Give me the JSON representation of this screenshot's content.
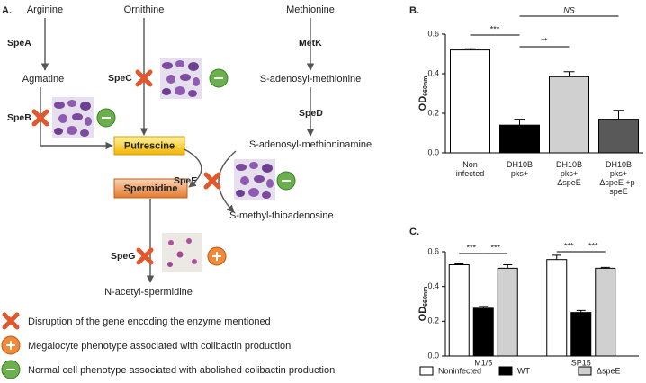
{
  "diagram": {
    "label": "A.",
    "nodes": [
      "Arginine",
      "Ornithine",
      "Methionine",
      "Agmatine",
      "S-adenosyl-methionine",
      "Putrescine",
      "S-adenosyl-methioninamine",
      "Spermidine",
      "S-methyl-thioadenosine",
      "N-acetyl-spermidine"
    ],
    "enzymes": [
      "SpeA",
      "MetK",
      "SpeC",
      "SpeB",
      "SpeD",
      "SpeE",
      "SpeG"
    ],
    "legend": [
      "Disruption of the gene encoding the enzyme mentioned",
      "Megalocyte phenotype associated with colibactin production",
      "Normal cell phenotype associated with abolished colibactin production"
    ]
  },
  "chart_data": [
    {
      "type": "bar",
      "label": "B.",
      "ylabel": [
        "OD",
        "660nm"
      ],
      "categories": [
        "Non infected",
        "DH10B pks+",
        "DH10B pks+ ΔspeE",
        "DH10B pks+ ΔspeE +p-speE"
      ],
      "values": [
        0.52,
        0.14,
        0.385,
        0.17
      ],
      "errors": [
        0.006,
        0.03,
        0.025,
        0.045
      ],
      "colors": [
        "#ffffff",
        "#000000",
        "#d0d0d0",
        "#595959"
      ],
      "ylim": [
        0,
        0.6
      ],
      "yticks": [
        {
          "value": 0,
          "label": "0.0"
        },
        {
          "value": 0.2,
          "label": "0.2"
        },
        {
          "value": 0.4,
          "label": "0.4"
        },
        {
          "value": 0.6,
          "label": "0.6"
        }
      ],
      "annotations": [
        {
          "text": "***",
          "pair": [
            "Non infected",
            "DH10B pks+"
          ]
        },
        {
          "text": "**",
          "pair": [
            "DH10B pks+",
            "DH10B pks+ ΔspeE"
          ]
        },
        {
          "text": "NS",
          "pair": [
            "DH10B pks+",
            "DH10B pks+ ΔspeE +p-speE"
          ]
        }
      ]
    },
    {
      "type": "grouped_bar",
      "label": "C.",
      "ylabel": [
        "OD",
        "660nm"
      ],
      "categories": [
        "M1/5",
        "SP15"
      ],
      "series": [
        {
          "name": "Noninfected",
          "color": "#ffffff",
          "values": [
            0.525,
            0.555
          ],
          "errors": [
            0.005,
            0.025
          ]
        },
        {
          "name": "WT",
          "color": "#000000",
          "values": [
            0.275,
            0.25
          ],
          "errors": [
            0.01,
            0.012
          ]
        },
        {
          "name": "ΔspeE",
          "color": "#d0d0d0",
          "values": [
            0.505,
            0.505
          ],
          "errors": [
            0.02,
            0.005
          ]
        }
      ],
      "ylim": [
        0,
        0.6
      ],
      "yticks": [
        {
          "value": 0,
          "label": "0.0"
        },
        {
          "value": 0.2,
          "label": "0.2"
        },
        {
          "value": 0.4,
          "label": "0.4"
        },
        {
          "value": 0.6,
          "label": "0.6"
        }
      ],
      "annotations": [
        {
          "text": "***",
          "category": "M1/5",
          "pair": [
            "Noninfected",
            "WT"
          ]
        },
        {
          "text": "***",
          "category": "M1/5",
          "pair": [
            "WT",
            "ΔspeE"
          ]
        },
        {
          "text": "***",
          "category": "SP15",
          "pair": [
            "Noninfected",
            "WT"
          ]
        },
        {
          "text": "***",
          "category": "SP15",
          "pair": [
            "WT",
            "ΔspeE"
          ]
        }
      ]
    }
  ]
}
